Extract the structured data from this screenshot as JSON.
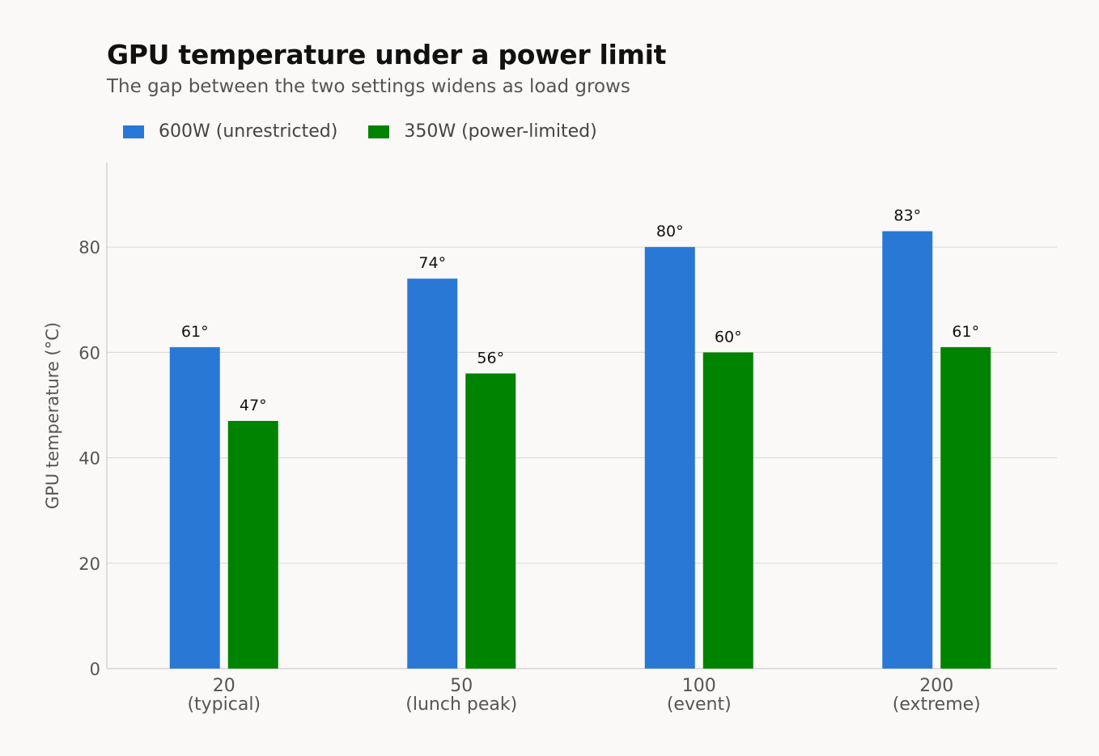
{
  "chart_data": {
    "type": "bar",
    "title": "GPU temperature under a power limit",
    "subtitle": "The gap between the two settings widens as load grows",
    "xlabel": "",
    "ylabel": "GPU temperature (°C)",
    "ylim": [
      0,
      96
    ],
    "yticks": [
      0,
      20,
      40,
      60,
      80
    ],
    "grid": true,
    "legend_position": "top-left",
    "categories": [
      [
        "20",
        "(typical)"
      ],
      [
        "50",
        "(lunch peak)"
      ],
      [
        "100",
        "(event)"
      ],
      [
        "200",
        "(extreme)"
      ]
    ],
    "series": [
      {
        "name": "600W (unrestricted)",
        "color": "#2a78d6",
        "values": [
          61,
          74,
          80,
          83
        ],
        "labels": [
          "61°",
          "74°",
          "80°",
          "83°"
        ]
      },
      {
        "name": "350W (power-limited)",
        "color": "#008300",
        "values": [
          47,
          56,
          60,
          61
        ],
        "labels": [
          "47°",
          "56°",
          "60°",
          "61°"
        ]
      }
    ]
  }
}
